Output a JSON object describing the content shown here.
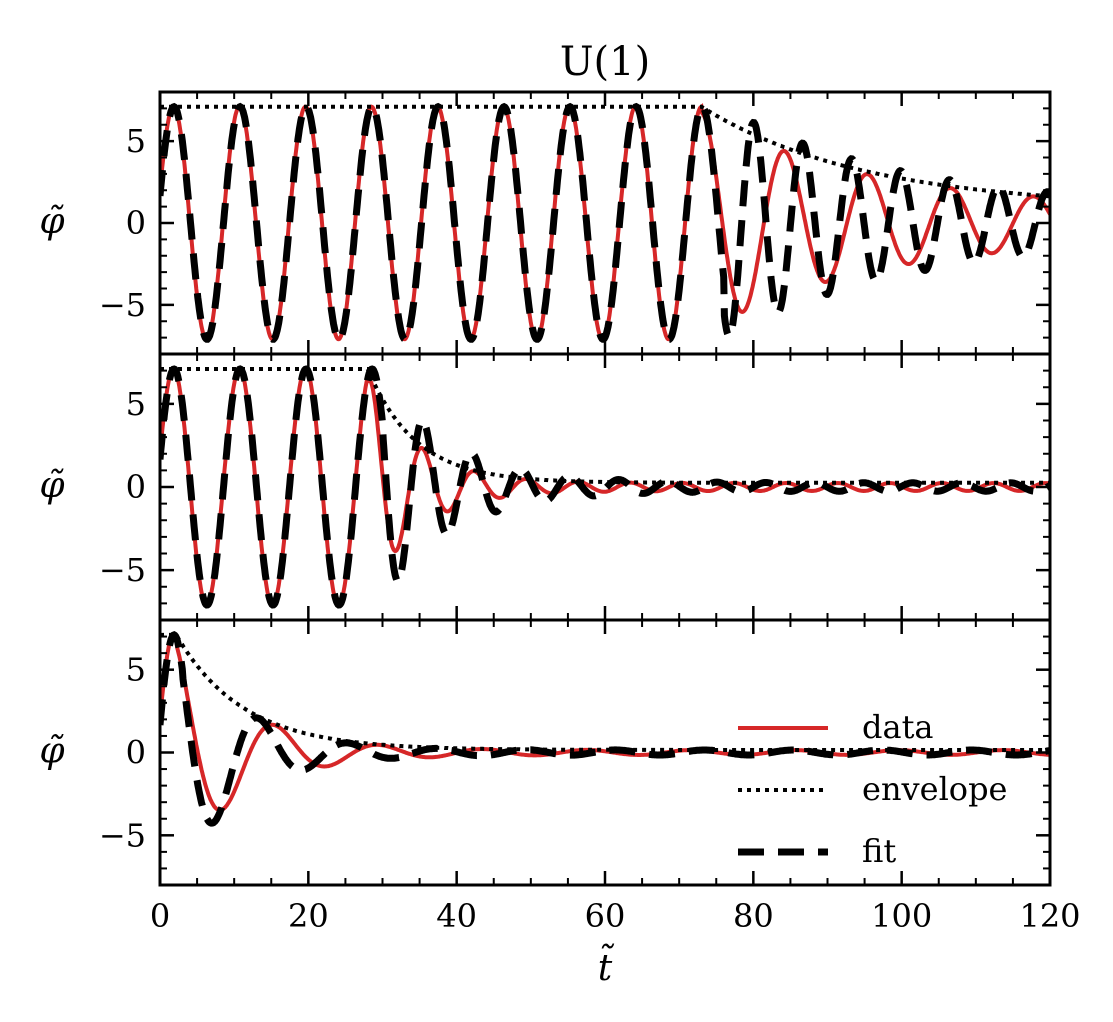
{
  "chart_data": {
    "type": "line",
    "title": "U(1)",
    "xlabel": "t̃",
    "ylabel": "φ̃",
    "xlim": [
      0,
      120
    ],
    "ylim": [
      -8,
      8
    ],
    "x_ticks": [
      0,
      20,
      40,
      60,
      80,
      100,
      120
    ],
    "x_tick_labels": [
      "0",
      "20",
      "40",
      "60",
      "80",
      "100",
      "120"
    ],
    "y_ticks": [
      -5,
      0,
      5
    ],
    "y_tick_labels": [
      "−5",
      "0",
      "5"
    ],
    "legend": {
      "location": "lower-right of bottom panel",
      "entries": [
        {
          "label": "data",
          "style": "solid",
          "color": "#d62728"
        },
        {
          "label": "envelope",
          "style": "dotted",
          "color": "#000000"
        },
        {
          "label": "fit",
          "style": "dashed",
          "color": "#000000"
        }
      ]
    },
    "colors": {
      "data": "#d62728",
      "envelope": "#000000",
      "fit": "#000000"
    },
    "panels": [
      {
        "name": "top",
        "amplitude": 7.1,
        "period": 8.9,
        "decay_start": 73,
        "decay_tau": 22,
        "damped_period": 11.2,
        "final_amplitude": 0.9,
        "fit_end": 76,
        "fit_damped_tau": 24,
        "fit_damped_period": 6.6,
        "fit_phase_delay": 3.5
      },
      {
        "name": "middle",
        "amplitude": 7.1,
        "period": 8.9,
        "decay_start": 28,
        "decay_tau": 6.5,
        "damped_period": 7.0,
        "final_amplitude": 0.25,
        "fit_end": 30,
        "fit_damped_tau": 9,
        "fit_damped_period": 6.6,
        "fit_phase_delay": 0.6
      },
      {
        "name": "bottom",
        "amplitude": 7.1,
        "period": 8.9,
        "decay_start": 2.2,
        "decay_tau": 9,
        "damped_period": 14,
        "final_amplitude": 0.15,
        "fit_end": 3,
        "fit_damped_tau": 8,
        "fit_damped_period": 12,
        "fit_phase_delay": 0.5
      }
    ]
  }
}
